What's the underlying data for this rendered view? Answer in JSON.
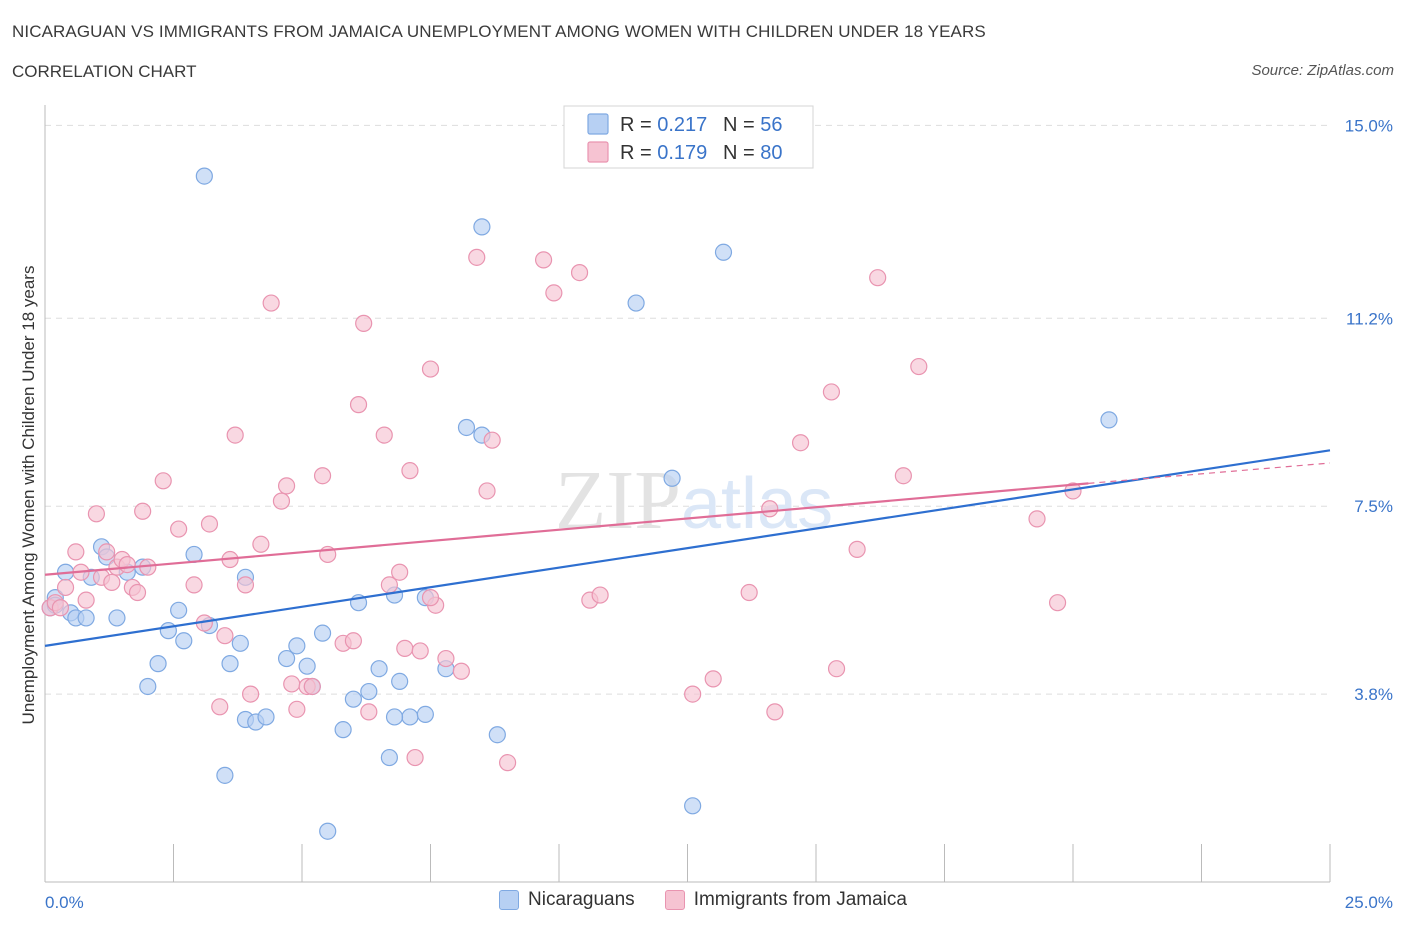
{
  "header": {
    "title": "NICARAGUAN VS IMMIGRANTS FROM JAMAICA UNEMPLOYMENT AMONG WOMEN WITH CHILDREN UNDER 18 YEARS",
    "subtitle": "CORRELATION CHART",
    "source": "Source: ZipAtlas.com"
  },
  "watermark": "ZIPatlas",
  "colors": {
    "blue_fill": "#b7d0f3",
    "blue_stroke": "#7fa9e2",
    "blue_line": "#2e6fd0",
    "pink_fill": "#f6c3d2",
    "pink_stroke": "#e994b0",
    "pink_line": "#e06d97",
    "tick_label": "#3a74c9",
    "grid": "#dddddd"
  },
  "legend_top": [
    {
      "series": "Nicaraguans",
      "r_label": "R = ",
      "r_value": "0.217",
      "n_label": "N = ",
      "n_value": "56"
    },
    {
      "series": "Immigrants from Jamaica",
      "r_label": "R = ",
      "r_value": "0.179",
      "n_label": "N = ",
      "n_value": "80"
    }
  ],
  "chart_data": {
    "type": "scatter",
    "title": "NICARAGUAN VS IMMIGRANTS FROM JAMAICA UNEMPLOYMENT AMONG WOMEN WITH CHILDREN UNDER 18 YEARS",
    "subtitle": "CORRELATION CHART",
    "ylabel": "Unemployment Among Women with Children Under 18 years",
    "xlabel": "",
    "xlim": [
      0,
      25
    ],
    "ylim": [
      0.1,
      15.4
    ],
    "x_tick_labels": [
      {
        "value": 0,
        "label": "0.0%"
      },
      {
        "value": 25,
        "label": "25.0%"
      }
    ],
    "y_tick_labels": [
      {
        "value": 3.8,
        "label": "3.8%"
      },
      {
        "value": 7.5,
        "label": "7.5%"
      },
      {
        "value": 11.2,
        "label": "11.2%"
      },
      {
        "value": 15.0,
        "label": "15.0%"
      }
    ],
    "grid": true,
    "legend_position": "bottom",
    "series": [
      {
        "name": "Nicaraguans",
        "color": "#b7d0f3",
        "r": 0.217,
        "n": 56,
        "trend": {
          "x": [
            0,
            25
          ],
          "y": [
            4.75,
            8.6
          ]
        },
        "points": [
          [
            0.1,
            5.5
          ],
          [
            0.2,
            5.7
          ],
          [
            0.2,
            5.55
          ],
          [
            0.4,
            6.2
          ],
          [
            0.5,
            5.4
          ],
          [
            0.6,
            5.3
          ],
          [
            0.8,
            5.3
          ],
          [
            0.9,
            6.1
          ],
          [
            1.1,
            6.7
          ],
          [
            1.2,
            6.5
          ],
          [
            1.4,
            5.3
          ],
          [
            1.6,
            6.2
          ],
          [
            1.9,
            6.3
          ],
          [
            2.0,
            3.95
          ],
          [
            2.2,
            4.4
          ],
          [
            2.4,
            5.05
          ],
          [
            2.6,
            5.45
          ],
          [
            2.7,
            4.85
          ],
          [
            2.9,
            6.55
          ],
          [
            3.1,
            14.0
          ],
          [
            3.2,
            5.15
          ],
          [
            3.5,
            2.2
          ],
          [
            3.6,
            4.4
          ],
          [
            3.8,
            4.8
          ],
          [
            3.9,
            6.1
          ],
          [
            3.9,
            3.3
          ],
          [
            4.1,
            3.25
          ],
          [
            4.3,
            3.35
          ],
          [
            4.7,
            4.5
          ],
          [
            4.9,
            4.75
          ],
          [
            5.1,
            4.35
          ],
          [
            5.2,
            3.95
          ],
          [
            5.4,
            5.0
          ],
          [
            5.5,
            1.1
          ],
          [
            5.8,
            3.1
          ],
          [
            6.0,
            3.7
          ],
          [
            6.1,
            5.6
          ],
          [
            6.3,
            3.85
          ],
          [
            6.7,
            2.55
          ],
          [
            6.8,
            5.75
          ],
          [
            6.9,
            4.05
          ],
          [
            7.1,
            3.35
          ],
          [
            7.4,
            3.4
          ],
          [
            7.8,
            4.3
          ],
          [
            8.2,
            9.05
          ],
          [
            8.5,
            8.9
          ],
          [
            8.5,
            13.0
          ],
          [
            8.8,
            3.0
          ],
          [
            7.4,
            5.7
          ],
          [
            6.8,
            3.35
          ],
          [
            6.5,
            4.3
          ],
          [
            11.5,
            11.5
          ],
          [
            12.2,
            8.05
          ],
          [
            12.6,
            1.6
          ],
          [
            13.2,
            12.5
          ],
          [
            20.7,
            9.2
          ]
        ]
      },
      {
        "name": "Immigrants from Jamaica",
        "color": "#f6c3d2",
        "r": 0.179,
        "n": 80,
        "trend": {
          "x": [
            0,
            20.3
          ],
          "y": [
            6.15,
            7.95
          ],
          "dashed_to": {
            "x": 25,
            "y": 8.35
          }
        },
        "points": [
          [
            0.1,
            5.5
          ],
          [
            0.2,
            5.6
          ],
          [
            0.3,
            5.5
          ],
          [
            0.4,
            5.9
          ],
          [
            0.6,
            6.6
          ],
          [
            0.7,
            6.2
          ],
          [
            0.8,
            5.65
          ],
          [
            1.0,
            7.35
          ],
          [
            1.1,
            6.1
          ],
          [
            1.2,
            6.6
          ],
          [
            1.3,
            6.0
          ],
          [
            1.4,
            6.3
          ],
          [
            1.5,
            6.45
          ],
          [
            1.6,
            6.35
          ],
          [
            1.7,
            5.9
          ],
          [
            1.8,
            5.8
          ],
          [
            1.9,
            7.4
          ],
          [
            2.0,
            6.3
          ],
          [
            2.3,
            8.0
          ],
          [
            2.6,
            7.05
          ],
          [
            2.9,
            5.95
          ],
          [
            3.1,
            5.2
          ],
          [
            3.2,
            7.15
          ],
          [
            3.4,
            3.55
          ],
          [
            3.5,
            4.95
          ],
          [
            3.6,
            6.45
          ],
          [
            3.7,
            8.9
          ],
          [
            3.9,
            5.95
          ],
          [
            4.0,
            3.8
          ],
          [
            4.2,
            6.75
          ],
          [
            4.4,
            11.5
          ],
          [
            4.6,
            7.6
          ],
          [
            4.7,
            7.9
          ],
          [
            4.8,
            4.0
          ],
          [
            4.9,
            3.5
          ],
          [
            5.1,
            3.95
          ],
          [
            5.2,
            3.95
          ],
          [
            5.4,
            8.1
          ],
          [
            5.5,
            6.55
          ],
          [
            5.8,
            4.8
          ],
          [
            6.0,
            4.85
          ],
          [
            6.1,
            9.5
          ],
          [
            6.2,
            11.1
          ],
          [
            6.3,
            3.45
          ],
          [
            6.6,
            8.9
          ],
          [
            6.7,
            5.95
          ],
          [
            6.9,
            6.2
          ],
          [
            7.0,
            4.7
          ],
          [
            7.1,
            8.2
          ],
          [
            7.2,
            2.55
          ],
          [
            7.3,
            4.65
          ],
          [
            7.5,
            10.2
          ],
          [
            7.6,
            5.55
          ],
          [
            7.8,
            4.5
          ],
          [
            8.1,
            4.25
          ],
          [
            8.4,
            12.4
          ],
          [
            8.6,
            7.8
          ],
          [
            8.7,
            8.8
          ],
          [
            9.0,
            2.45
          ],
          [
            9.7,
            12.35
          ],
          [
            9.9,
            11.7
          ],
          [
            10.4,
            12.1
          ],
          [
            10.6,
            5.65
          ],
          [
            10.8,
            5.75
          ],
          [
            12.6,
            3.8
          ],
          [
            13.0,
            4.1
          ],
          [
            13.7,
            5.8
          ],
          [
            14.2,
            3.45
          ],
          [
            14.1,
            7.45
          ],
          [
            14.7,
            8.75
          ],
          [
            15.3,
            9.75
          ],
          [
            15.4,
            4.3
          ],
          [
            15.8,
            6.65
          ],
          [
            16.2,
            12.0
          ],
          [
            16.7,
            8.1
          ],
          [
            17.0,
            10.25
          ],
          [
            19.3,
            7.25
          ],
          [
            19.7,
            5.6
          ],
          [
            20.0,
            7.8
          ],
          [
            7.5,
            5.7
          ]
        ]
      }
    ]
  }
}
